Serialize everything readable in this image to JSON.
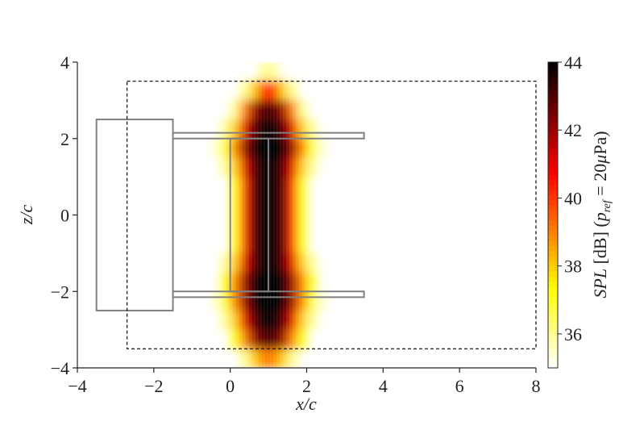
{
  "chart_data": {
    "type": "heatmap",
    "xlabel": "x/c",
    "ylabel": "z/c",
    "xlim": [
      -4,
      8
    ],
    "ylim": [
      -4,
      4
    ],
    "xticks": [
      {
        "value": -4,
        "label": "−4"
      },
      {
        "value": -2,
        "label": "−2"
      },
      0,
      2,
      4,
      6,
      8
    ],
    "yticks": [
      {
        "value": -4,
        "label": "−4"
      },
      {
        "value": -2,
        "label": "−2"
      },
      0,
      2,
      4
    ],
    "x": [
      -0.375,
      -0.125,
      0.125,
      0.375,
      0.625,
      0.875,
      1.125,
      1.375,
      1.625,
      1.875,
      2.125,
      2.375
    ],
    "y": [
      3.75,
      3.25,
      2.75,
      2.25,
      1.75,
      1.25,
      0.75,
      0.25,
      -0.25,
      -0.75,
      -1.25,
      -1.75,
      -2.25,
      -2.75,
      -3.25,
      -3.75
    ],
    "values": [
      [
        null,
        null,
        null,
        null,
        null,
        36,
        36,
        null,
        null,
        null,
        null,
        null
      ],
      [
        null,
        null,
        null,
        36,
        38,
        40,
        40,
        38,
        36,
        null,
        null,
        null
      ],
      [
        null,
        null,
        36,
        39,
        42,
        43,
        43,
        42,
        39,
        36,
        null,
        null
      ],
      [
        null,
        36,
        38,
        41,
        43,
        44,
        44,
        43,
        41,
        38,
        36,
        null
      ],
      [
        35.5,
        37,
        39,
        42,
        44,
        44,
        44,
        44,
        42,
        39,
        37,
        35.5
      ],
      [
        null,
        36,
        38,
        41,
        43,
        44,
        44,
        43,
        41,
        38,
        36,
        null
      ],
      [
        null,
        null,
        37,
        40,
        43,
        44,
        44,
        43,
        40,
        37,
        null,
        null
      ],
      [
        null,
        null,
        37,
        40,
        43,
        44,
        44,
        43,
        40,
        37,
        null,
        null
      ],
      [
        null,
        null,
        37,
        40,
        43,
        44,
        44,
        43,
        40,
        37,
        null,
        null
      ],
      [
        null,
        null,
        37,
        40,
        43,
        44,
        44,
        43,
        40,
        37,
        null,
        null
      ],
      [
        null,
        36,
        38,
        41,
        43,
        44,
        44,
        43,
        41,
        38,
        36,
        null
      ],
      [
        null,
        37,
        39,
        42,
        44,
        44,
        44,
        44,
        42,
        39,
        37,
        null
      ],
      [
        35.5,
        37,
        39,
        42,
        44,
        44,
        44,
        44,
        42,
        39,
        37,
        35.5
      ],
      [
        null,
        36,
        38,
        41,
        43,
        44,
        44,
        43,
        41,
        38,
        36,
        null
      ],
      [
        null,
        null,
        37,
        39,
        42,
        43,
        43,
        42,
        39,
        37,
        null,
        null
      ],
      [
        null,
        null,
        null,
        36,
        38,
        39,
        39,
        38,
        36,
        null,
        null,
        null
      ]
    ],
    "colormap": "hot_r",
    "clim": [
      35,
      44
    ],
    "cticks": [
      36,
      38,
      40,
      42,
      44
    ],
    "colorbar_label": [
      "SPL",
      "[dB] (",
      "p",
      "ref",
      "= 20",
      "μ",
      "Pa)"
    ],
    "outlines": [
      {
        "x": [
          -3.5,
          -1.5
        ],
        "y": [
          -2.5,
          2.5
        ],
        "color": "#808080"
      },
      {
        "x": [
          -1.5,
          3.5
        ],
        "y": [
          2.0,
          2.15
        ],
        "color": "#808080"
      },
      {
        "x": [
          -1.5,
          3.5
        ],
        "y": [
          -2.15,
          -2.0
        ],
        "color": "#808080"
      },
      {
        "x": [
          0,
          1
        ],
        "y": [
          -2.0,
          2.0
        ],
        "color": "#808080"
      }
    ],
    "domain_box": {
      "x": [
        -2.7,
        8
      ],
      "y": [
        -3.5,
        3.5
      ],
      "color": "#000000"
    }
  }
}
